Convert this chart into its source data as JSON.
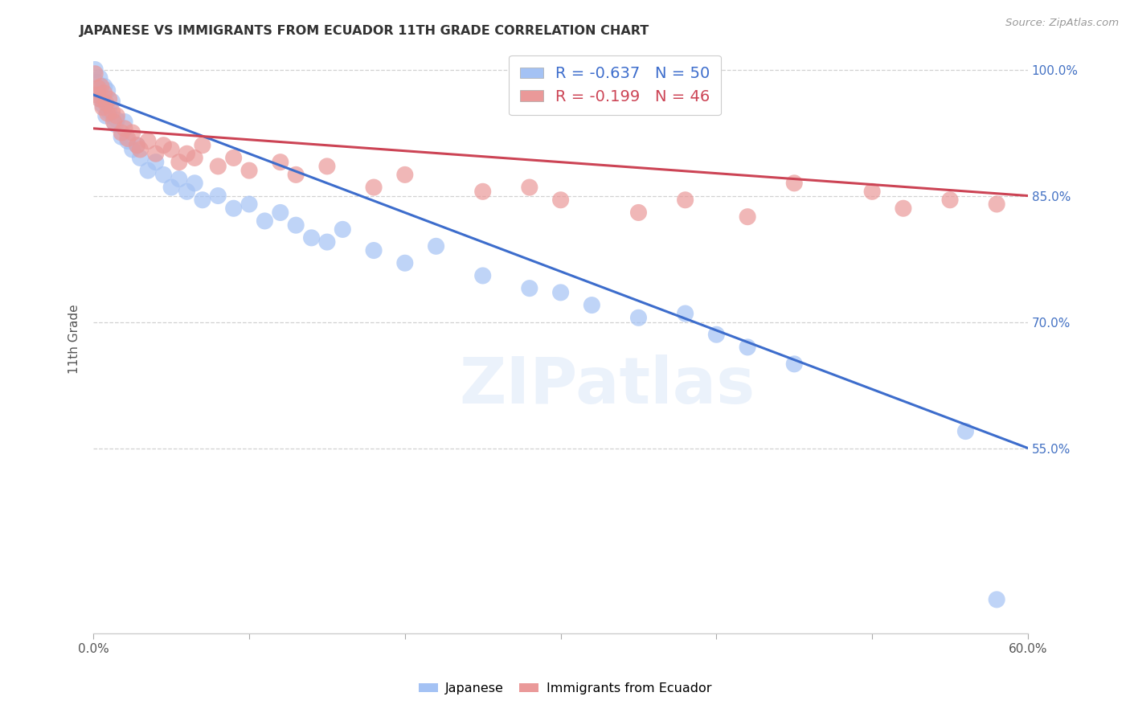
{
  "title": "JAPANESE VS IMMIGRANTS FROM ECUADOR 11TH GRADE CORRELATION CHART",
  "source": "Source: ZipAtlas.com",
  "ylabel": "11th Grade",
  "watermark": "ZIPatlas",
  "blue_color": "#a4c2f4",
  "pink_color": "#ea9999",
  "blue_line_color": "#3d6dcc",
  "pink_line_color": "#cc4455",
  "blue_scatter": [
    [
      0.001,
      100.0
    ],
    [
      0.002,
      98.5
    ],
    [
      0.003,
      97.2
    ],
    [
      0.004,
      99.0
    ],
    [
      0.005,
      96.5
    ],
    [
      0.006,
      95.8
    ],
    [
      0.007,
      98.0
    ],
    [
      0.008,
      94.5
    ],
    [
      0.009,
      97.5
    ],
    [
      0.01,
      95.0
    ],
    [
      0.012,
      96.2
    ],
    [
      0.014,
      93.5
    ],
    [
      0.015,
      94.0
    ],
    [
      0.018,
      92.0
    ],
    [
      0.02,
      93.8
    ],
    [
      0.022,
      91.5
    ],
    [
      0.025,
      90.5
    ],
    [
      0.028,
      91.0
    ],
    [
      0.03,
      89.5
    ],
    [
      0.035,
      88.0
    ],
    [
      0.04,
      89.0
    ],
    [
      0.045,
      87.5
    ],
    [
      0.05,
      86.0
    ],
    [
      0.055,
      87.0
    ],
    [
      0.06,
      85.5
    ],
    [
      0.065,
      86.5
    ],
    [
      0.07,
      84.5
    ],
    [
      0.08,
      85.0
    ],
    [
      0.09,
      83.5
    ],
    [
      0.1,
      84.0
    ],
    [
      0.11,
      82.0
    ],
    [
      0.12,
      83.0
    ],
    [
      0.13,
      81.5
    ],
    [
      0.14,
      80.0
    ],
    [
      0.15,
      79.5
    ],
    [
      0.16,
      81.0
    ],
    [
      0.18,
      78.5
    ],
    [
      0.2,
      77.0
    ],
    [
      0.22,
      79.0
    ],
    [
      0.25,
      75.5
    ],
    [
      0.28,
      74.0
    ],
    [
      0.3,
      73.5
    ],
    [
      0.32,
      72.0
    ],
    [
      0.35,
      70.5
    ],
    [
      0.38,
      71.0
    ],
    [
      0.4,
      68.5
    ],
    [
      0.42,
      67.0
    ],
    [
      0.45,
      65.0
    ],
    [
      0.56,
      57.0
    ],
    [
      0.58,
      37.0
    ]
  ],
  "pink_scatter": [
    [
      0.001,
      99.5
    ],
    [
      0.002,
      97.0
    ],
    [
      0.003,
      97.8
    ],
    [
      0.004,
      96.5
    ],
    [
      0.005,
      98.0
    ],
    [
      0.006,
      95.5
    ],
    [
      0.007,
      97.2
    ],
    [
      0.008,
      96.0
    ],
    [
      0.009,
      94.8
    ],
    [
      0.01,
      96.5
    ],
    [
      0.012,
      95.0
    ],
    [
      0.013,
      93.8
    ],
    [
      0.015,
      94.5
    ],
    [
      0.018,
      92.5
    ],
    [
      0.02,
      93.0
    ],
    [
      0.022,
      91.8
    ],
    [
      0.025,
      92.5
    ],
    [
      0.028,
      91.0
    ],
    [
      0.03,
      90.5
    ],
    [
      0.035,
      91.5
    ],
    [
      0.04,
      90.0
    ],
    [
      0.045,
      91.0
    ],
    [
      0.05,
      90.5
    ],
    [
      0.055,
      89.0
    ],
    [
      0.06,
      90.0
    ],
    [
      0.065,
      89.5
    ],
    [
      0.07,
      91.0
    ],
    [
      0.08,
      88.5
    ],
    [
      0.09,
      89.5
    ],
    [
      0.1,
      88.0
    ],
    [
      0.12,
      89.0
    ],
    [
      0.13,
      87.5
    ],
    [
      0.15,
      88.5
    ],
    [
      0.18,
      86.0
    ],
    [
      0.2,
      87.5
    ],
    [
      0.25,
      85.5
    ],
    [
      0.28,
      86.0
    ],
    [
      0.3,
      84.5
    ],
    [
      0.35,
      83.0
    ],
    [
      0.38,
      84.5
    ],
    [
      0.42,
      82.5
    ],
    [
      0.45,
      86.5
    ],
    [
      0.5,
      85.5
    ],
    [
      0.52,
      83.5
    ],
    [
      0.55,
      84.5
    ],
    [
      0.58,
      84.0
    ]
  ],
  "blue_line_x": [
    0.0,
    0.6
  ],
  "blue_line_y": [
    97.0,
    55.0
  ],
  "pink_line_x": [
    0.0,
    0.6
  ],
  "pink_line_y": [
    93.0,
    85.0
  ],
  "xmin": 0.0,
  "xmax": 0.6,
  "ymin": 33.0,
  "ymax": 103.0,
  "ytick_vals": [
    55.0,
    70.0,
    85.0,
    100.0
  ],
  "ytick_labels": [
    "55.0%",
    "70.0%",
    "85.0%",
    "100.0%"
  ],
  "xtick_vals": [
    0.0,
    0.1,
    0.2,
    0.3,
    0.4,
    0.5,
    0.6
  ],
  "xtick_labels_show": [
    "0.0%",
    "",
    "",
    "",
    "",
    "",
    "60.0%"
  ]
}
